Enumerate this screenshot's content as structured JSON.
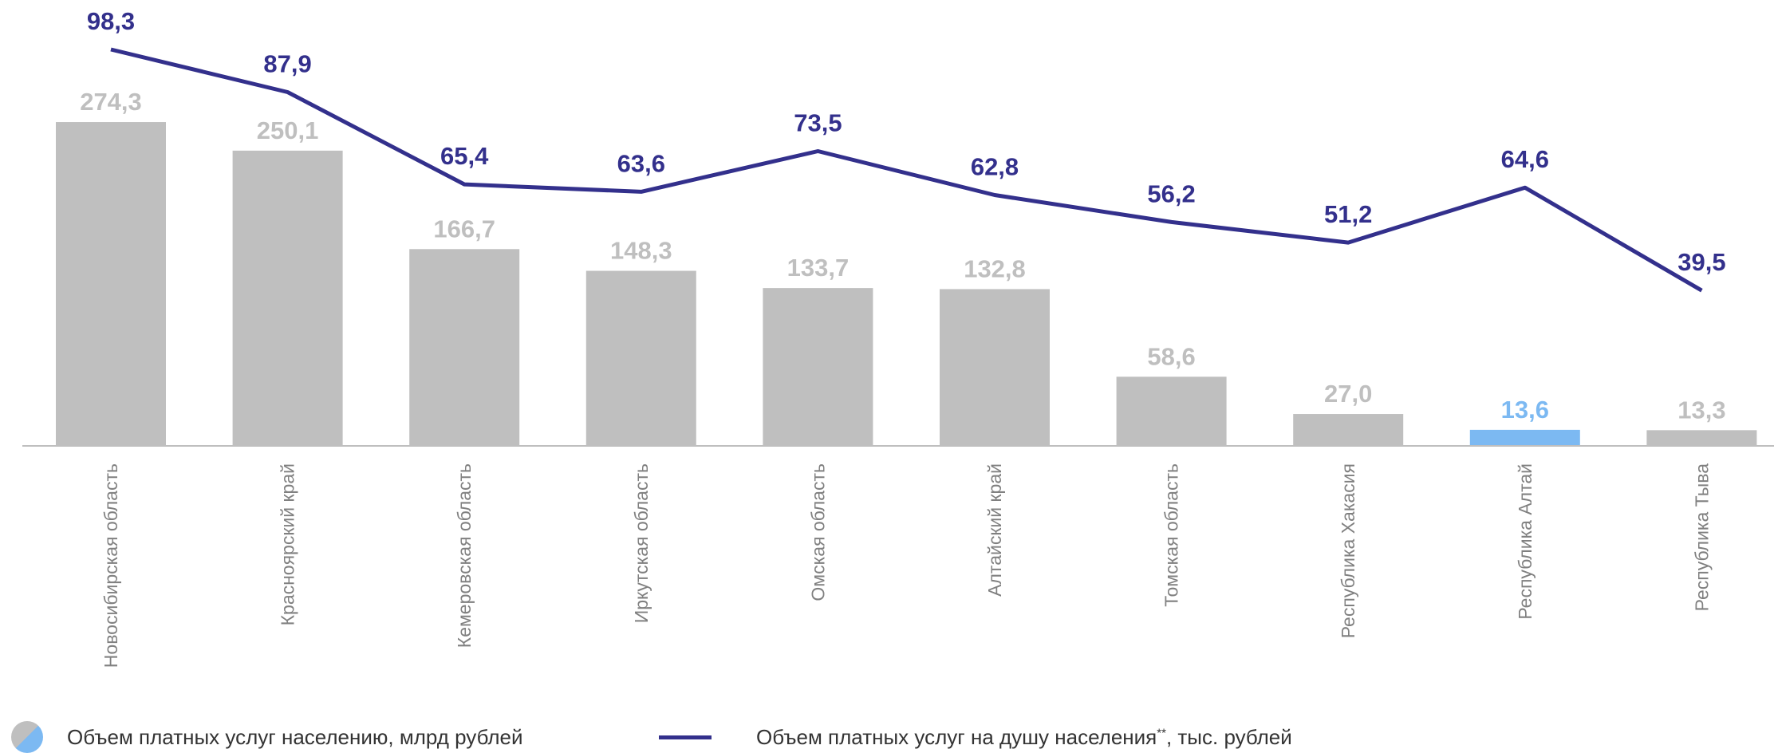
{
  "colors": {
    "bar": "#bfbfbf",
    "bar_highlight": "#7cb9f2",
    "bar_label": "#bfbfbf",
    "line": "#33308c",
    "axis": "#bfbfbf"
  },
  "legend": {
    "bars_label": "Объем платных услуг населению, млрд рублей",
    "line_label_main": "Объем платных услуг на душу населения",
    "line_label_mark": "**",
    "line_label_unit": ", тыс. рублей"
  },
  "chart_data": {
    "type": "bar",
    "categories": [
      "Новосибирская область",
      "Красноярский край",
      "Кемеровская область",
      "Иркутская область",
      "Омская область",
      "Алтайский край",
      "Томская область",
      "Республика Хакасия",
      "Республика Алтай",
      "Республика Тыва"
    ],
    "bar_labels": [
      "274,3",
      "250,1",
      "166,7",
      "148,3",
      "133,7",
      "132,8",
      "58,6",
      "27,0",
      "13,6",
      "13,3"
    ],
    "line_labels": [
      "98,3",
      "87,9",
      "65,4",
      "63,6",
      "73,5",
      "62,8",
      "56,2",
      "51,2",
      "64,6",
      "39,5"
    ],
    "series": [
      {
        "name": "Объем платных услуг населению, млрд рублей",
        "type": "bar",
        "values": [
          274.3,
          250.1,
          166.7,
          148.3,
          133.7,
          132.8,
          58.6,
          27.0,
          13.6,
          13.3
        ]
      },
      {
        "name": "Объем платных услуг на душу населения**, тыс. рублей",
        "type": "line",
        "values": [
          98.3,
          87.9,
          65.4,
          63.6,
          73.5,
          62.8,
          56.2,
          51.2,
          64.6,
          39.5
        ]
      }
    ],
    "highlight_category": "Республика Алтай",
    "grid": false,
    "legend_position": "bottom"
  }
}
